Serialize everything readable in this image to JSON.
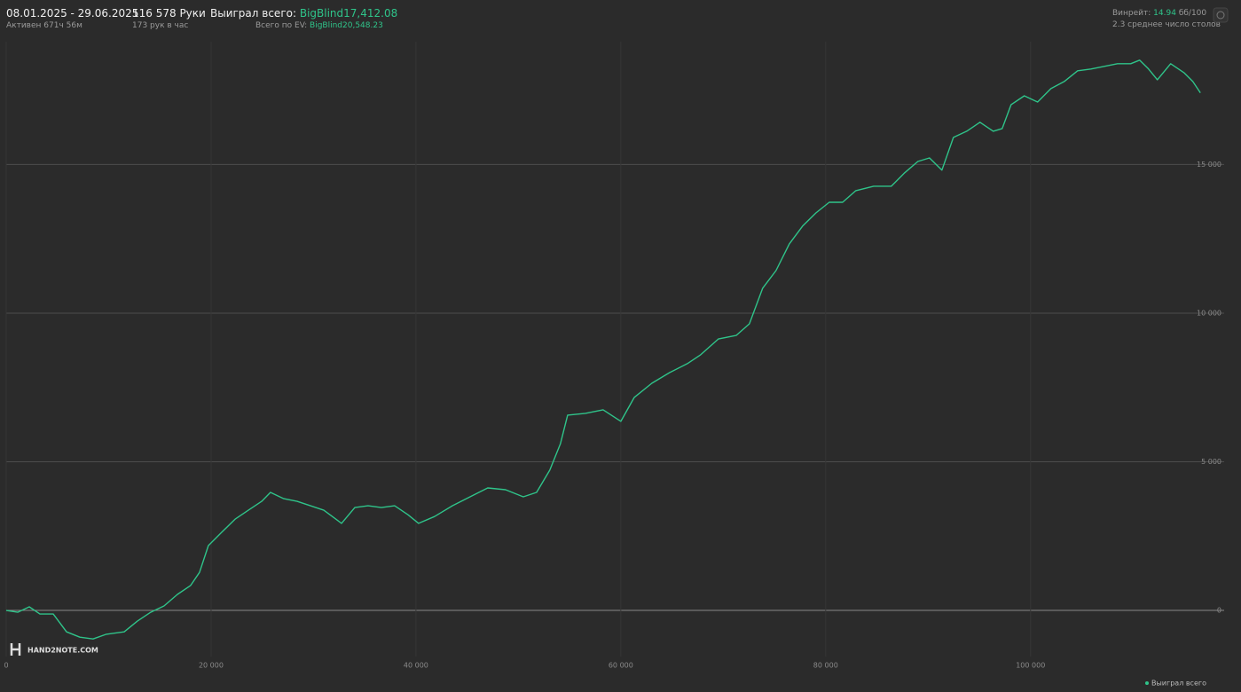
{
  "header": {
    "date_range": "08.01.2025 - 29.06.2025",
    "active": "Активен 671ч 56м",
    "hands": "116 578 Руки",
    "hands_per_hour": "173 рук в час",
    "won_label": "Выиграл всего:",
    "won_value": "BigBlind17,412.08",
    "ev_label": "Всего по EV:",
    "ev_value": "BigBlind20,548.23",
    "winrate_label": "Винрейт:",
    "winrate_value": "14.94",
    "winrate_unit": "бб/100",
    "tables": "2.3 среднее число столов",
    "logo": "HAND2NOTE.COM"
  },
  "chart_data": {
    "type": "line",
    "grid": true,
    "legend": "bottom-right",
    "xlim": [
      0,
      118900
    ],
    "ylim": [
      -1550,
      19130
    ],
    "xticks": [
      0,
      {
        "value": 20000,
        "label": "20 000"
      },
      {
        "value": 40000,
        "label": "40 000"
      },
      {
        "value": 60000,
        "label": "60 000"
      },
      {
        "value": 80000,
        "label": "80 000"
      },
      {
        "value": 100000,
        "label": "100 000"
      }
    ],
    "yticks": [
      0,
      {
        "value": 5000,
        "label": "5 000"
      },
      {
        "value": 10000,
        "label": "10 000"
      },
      {
        "value": 15000,
        "label": "15 000"
      }
    ],
    "x": [
      0,
      1126,
      2250,
      3290,
      4590,
      5890,
      7190,
      8480,
      9780,
      11520,
      12810,
      14110,
      15410,
      16710,
      18000,
      18870,
      19740,
      21040,
      22340,
      23640,
      24940,
      25800,
      27100,
      28400,
      29700,
      31000,
      32730,
      34030,
      35320,
      36620,
      37920,
      39220,
      40260,
      41820,
      43550,
      45280,
      47010,
      48750,
      50480,
      51780,
      53070,
      54110,
      54810,
      56540,
      58270,
      60000,
      61300,
      63030,
      64760,
      66490,
      67790,
      69520,
      71260,
      72550,
      73850,
      75150,
      76450,
      77750,
      79050,
      80350,
      81650,
      82940,
      84680,
      86410,
      87710,
      89000,
      90130,
      91340,
      92470,
      93770,
      95060,
      96360,
      97230,
      98100,
      99390,
      100690,
      101990,
      103290,
      104590,
      105890,
      107190,
      108490,
      109780,
      110650,
      111520,
      112380,
      113680,
      114980,
      115840,
      116578
    ],
    "series": [
      {
        "name": "Выиграл всего",
        "color": "#2fc48a",
        "values": [
          0,
          -60,
          120,
          -120,
          -120,
          -720,
          -900,
          -960,
          -800,
          -720,
          -360,
          -60,
          150,
          540,
          840,
          1280,
          2180,
          2630,
          3070,
          3370,
          3670,
          3970,
          3760,
          3670,
          3520,
          3370,
          2930,
          3460,
          3520,
          3460,
          3520,
          3220,
          2930,
          3160,
          3520,
          3820,
          4120,
          4060,
          3820,
          3970,
          4720,
          5610,
          6570,
          6630,
          6750,
          6360,
          7160,
          7640,
          8000,
          8300,
          8600,
          9130,
          9250,
          9640,
          10840,
          11430,
          12330,
          12930,
          13370,
          13730,
          13730,
          14120,
          14270,
          14270,
          14720,
          15100,
          15220,
          14810,
          15910,
          16120,
          16420,
          16120,
          16210,
          17010,
          17310,
          17100,
          17550,
          17790,
          18150,
          18210,
          18300,
          18390,
          18390,
          18510,
          18210,
          17850,
          18390,
          18090,
          17790,
          17412
        ]
      }
    ]
  }
}
